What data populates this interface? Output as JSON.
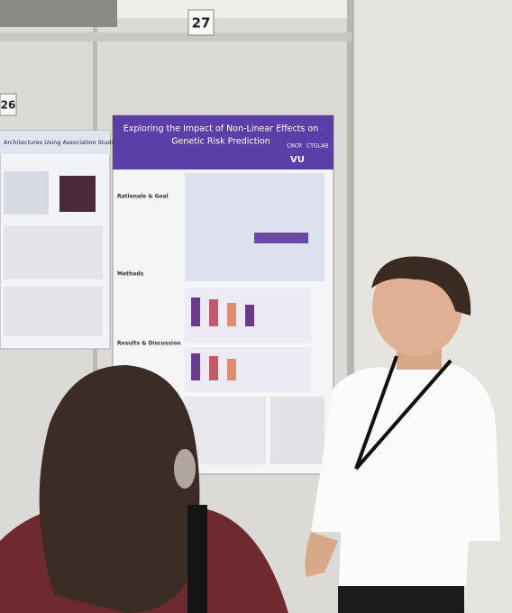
{
  "booth_numbers": [
    "27",
    "26"
  ],
  "poster_main": {
    "title_lines": [
      "Exploring the Impact of Non-Linear Effects on",
      "Genetic Risk Prediction"
    ],
    "sections": [
      "Rationale & Goal",
      "Methods",
      "Results & Discussion"
    ],
    "logos": [
      "CNCR",
      "CTGLAB",
      "VU"
    ]
  },
  "poster_left": {
    "title": "Architectures Using Association Studies"
  }
}
